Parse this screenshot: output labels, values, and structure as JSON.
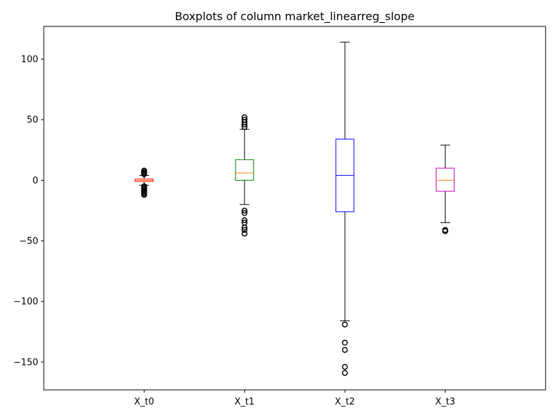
{
  "chart_data": {
    "type": "box",
    "title": "Boxplots of column market_linearreg_slope",
    "xlabel": "",
    "ylabel": "",
    "ylim": [
      -173,
      127
    ],
    "yticks": [
      -150,
      -100,
      -50,
      0,
      50,
      100
    ],
    "grid": false,
    "categories": [
      "X_t0",
      "X_t1",
      "X_t2",
      "X_t3"
    ],
    "series": [
      {
        "label": "X_t0",
        "color": "#ff0000",
        "median_color": "#ff7f0e",
        "whisker_low": -4,
        "q1": -1,
        "median": 0,
        "q3": 1,
        "whisker_high": 4,
        "outliers": [
          -5,
          -6,
          -7,
          -8,
          -9,
          -10,
          -11,
          -12,
          5,
          6,
          7,
          8
        ]
      },
      {
        "label": "X_t1",
        "color": "#008000",
        "median_color": "#ff7f0e",
        "whisker_low": -20,
        "q1": 0,
        "median": 6,
        "q3": 17,
        "whisker_high": 42,
        "outliers": [
          -25,
          -27,
          -33,
          -35,
          -39,
          -41,
          -44,
          44,
          46,
          48,
          50,
          52
        ]
      },
      {
        "label": "X_t2",
        "color": "#0000ff",
        "median_color": "#0000ff",
        "whisker_low": -116,
        "q1": -26,
        "median": 4,
        "q3": 34,
        "whisker_high": 114,
        "outliers": [
          -119,
          -134,
          -140,
          -154,
          -159
        ]
      },
      {
        "label": "X_t3",
        "color": "#bf00bf",
        "median_color": "#ff7f0e",
        "whisker_low": -35,
        "q1": -9,
        "median": 0,
        "q3": 10,
        "whisker_high": 29,
        "outliers": [
          -41,
          -42
        ]
      }
    ]
  }
}
